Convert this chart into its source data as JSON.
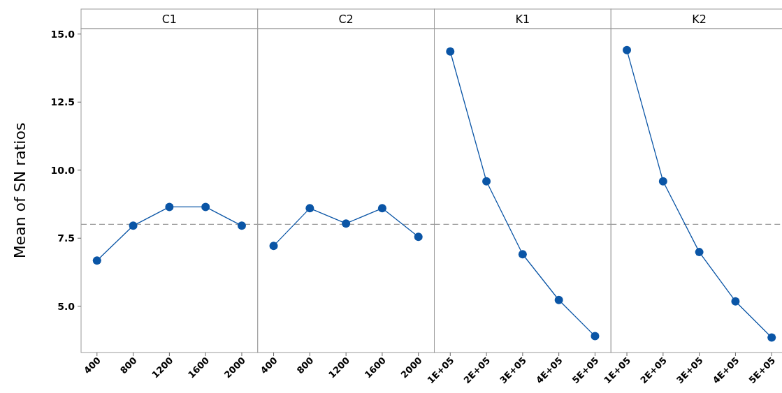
{
  "chart_data": [
    {
      "type": "line",
      "title": "C1",
      "ylabel": "Mean of SN ratios",
      "categories": [
        "400",
        "800",
        "1200",
        "1600",
        "2000"
      ],
      "series": [
        {
          "color": "#0a55a6",
          "values": [
            6.68,
            7.96,
            8.65,
            8.65,
            7.96
          ]
        }
      ],
      "ylim": [
        3.3,
        15.2
      ],
      "yticks": [
        {
          "value": 5,
          "label": "5.0"
        },
        {
          "value": 7.5,
          "label": "7.5"
        },
        {
          "value": 10,
          "label": "10.0"
        },
        {
          "value": 12.5,
          "label": "12.5"
        },
        {
          "value": 15,
          "label": "15.0"
        }
      ],
      "ref_lines": [
        {
          "axis": "y",
          "value": 8.01,
          "color": "#999999",
          "line_style": "dashed"
        }
      ],
      "marker": "circle",
      "grid": false
    },
    {
      "type": "line",
      "title": "C2",
      "categories": [
        "400",
        "800",
        "1200",
        "1600",
        "2000"
      ],
      "series": [
        {
          "color": "#0a55a6",
          "values": [
            7.22,
            8.6,
            8.04,
            8.6,
            7.55
          ]
        }
      ],
      "ylim": [
        3.3,
        15.2
      ],
      "tick_labels": "x",
      "ref_lines": [
        {
          "axis": "y",
          "value": 8.01,
          "color": "#999999",
          "line_style": "dashed"
        }
      ],
      "marker": "circle",
      "grid": false
    },
    {
      "type": "line",
      "title": "K1",
      "categories": [
        "1E+05",
        "2E+05",
        "3E+05",
        "4E+05",
        "5E+05"
      ],
      "series": [
        {
          "color": "#0a55a6",
          "values": [
            14.36,
            9.59,
            6.91,
            5.23,
            3.9
          ]
        }
      ],
      "ylim": [
        3.3,
        15.2
      ],
      "tick_labels": "x",
      "ref_lines": [
        {
          "axis": "y",
          "value": 8.01,
          "color": "#999999",
          "line_style": "dashed"
        }
      ],
      "marker": "circle",
      "grid": false
    },
    {
      "type": "line",
      "title": "K2",
      "categories": [
        "1E+05",
        "2E+05",
        "3E+05",
        "4E+05",
        "5E+05"
      ],
      "series": [
        {
          "color": "#0a55a6",
          "values": [
            14.41,
            9.59,
            6.99,
            5.18,
            3.85
          ]
        }
      ],
      "ylim": [
        3.3,
        15.2
      ],
      "tick_labels": "x",
      "ref_lines": [
        {
          "axis": "y",
          "value": 8.01,
          "color": "#999999",
          "line_style": "dashed"
        }
      ],
      "marker": "circle",
      "grid": false
    }
  ]
}
